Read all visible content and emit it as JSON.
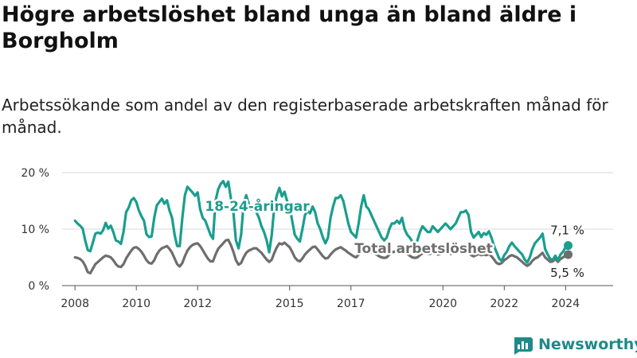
{
  "title": "Högre arbetslöshet bland unga än bland äldre i Borgholm",
  "subtitle": "Arbetssökande som andel av den registerbaserade arbetskraften månad för månad.",
  "brand": {
    "name": "Newsworthy"
  },
  "chart_data": {
    "type": "line",
    "x_range": [
      "2008-01",
      "2024-12"
    ],
    "ylim": [
      0,
      20
    ],
    "y_ticks": [
      0,
      10,
      20
    ],
    "y_tick_labels": [
      "0 %",
      "10 %",
      "20 %"
    ],
    "x_tick_labels": [
      "2008",
      "2010",
      "2012",
      "2015",
      "2017",
      "2020",
      "2022",
      "2024"
    ],
    "grid": true,
    "series": [
      {
        "name": "18-24-åringar",
        "color": "#1a9e8e",
        "end_label": "7,1 %",
        "values": [
          11.5,
          11.0,
          10.6,
          10.1,
          8.0,
          6.3,
          6.1,
          7.6,
          9.2,
          9.4,
          9.2,
          9.8,
          11.1,
          10.1,
          10.6,
          9.5,
          8.0,
          7.8,
          7.4,
          9.5,
          13.0,
          13.8,
          15.1,
          15.5,
          14.8,
          13.3,
          12.3,
          11.5,
          9.1,
          8.6,
          8.7,
          12.0,
          14.2,
          14.8,
          15.4,
          14.5,
          15.1,
          13.3,
          12.0,
          9.0,
          7.0,
          7.0,
          12.0,
          16.0,
          17.5,
          17.0,
          16.5,
          15.9,
          16.5,
          13.5,
          12.0,
          11.5,
          10.3,
          9.0,
          8.3,
          15.0,
          17.0,
          18.0,
          18.5,
          17.5,
          18.4,
          15.5,
          13.0,
          8.0,
          6.6,
          9.0,
          14.5,
          16.0,
          14.5,
          13.5,
          14.0,
          13.0,
          12.0,
          10.5,
          9.5,
          8.0,
          5.9,
          9.0,
          14.0,
          16.0,
          17.3,
          15.8,
          16.6,
          15.0,
          14.0,
          11.5,
          9.0,
          8.3,
          7.8,
          10.0,
          12.5,
          13.2,
          12.8,
          14.0,
          13.0,
          11.0,
          10.0,
          8.5,
          7.5,
          8.5,
          12.0,
          14.0,
          15.5,
          15.5,
          16.0,
          15.0,
          13.0,
          11.0,
          9.5,
          9.0,
          8.5,
          11.0,
          14.0,
          16.0,
          14.0,
          13.5,
          12.5,
          11.5,
          10.5,
          9.5,
          8.5,
          8.0,
          8.5,
          10.0,
          11.0,
          11.0,
          11.5,
          11.0,
          12.0,
          10.0,
          9.0,
          8.5,
          7.8,
          7.5,
          8.0,
          9.5,
          10.5,
          10.0,
          9.5,
          9.5,
          10.5,
          10.0,
          9.5,
          10.0,
          10.5,
          11.0,
          10.5,
          10.0,
          10.5,
          11.0,
          12.0,
          13.0,
          13.0,
          13.3,
          12.5,
          9.5,
          8.5,
          9.0,
          9.5,
          8.6,
          9.3,
          9.0,
          9.6,
          8.5,
          7.0,
          5.9,
          4.8,
          4.4,
          5.4,
          6.0,
          7.0,
          7.6,
          7.0,
          6.5,
          6.0,
          5.5,
          4.6,
          4.1,
          5.0,
          6.5,
          7.5,
          8.0,
          8.5,
          9.2,
          6.5,
          5.5,
          4.7,
          4.6,
          5.3,
          4.5,
          5.5,
          6.0,
          6.8,
          7.1
        ]
      },
      {
        "name": "Total arbetslöshet",
        "color": "#6e6e6e",
        "end_label": "5,5 %",
        "values": [
          5.0,
          4.9,
          4.7,
          4.3,
          3.5,
          2.4,
          2.2,
          3.0,
          3.8,
          4.2,
          4.6,
          5.0,
          5.3,
          5.2,
          5.0,
          4.5,
          3.8,
          3.4,
          3.3,
          3.8,
          4.8,
          5.5,
          6.2,
          6.7,
          6.8,
          6.5,
          6.0,
          5.3,
          4.5,
          4.0,
          3.9,
          4.5,
          5.5,
          6.2,
          6.6,
          6.8,
          7.0,
          6.5,
          5.8,
          4.8,
          3.8,
          3.4,
          4.0,
          5.2,
          6.2,
          6.8,
          7.2,
          7.4,
          7.5,
          7.0,
          6.3,
          5.5,
          4.8,
          4.3,
          4.3,
          5.5,
          6.5,
          7.0,
          7.5,
          8.0,
          8.1,
          7.2,
          6.0,
          4.5,
          3.7,
          4.0,
          5.0,
          5.8,
          6.2,
          6.4,
          6.6,
          6.6,
          6.2,
          5.8,
          5.2,
          4.6,
          4.2,
          4.6,
          5.8,
          6.8,
          7.5,
          7.3,
          7.6,
          7.2,
          6.8,
          6.0,
          5.0,
          4.5,
          4.3,
          4.8,
          5.5,
          6.0,
          6.4,
          6.8,
          6.9,
          6.4,
          5.8,
          5.2,
          4.8,
          4.9,
          5.5,
          6.0,
          6.4,
          6.6,
          6.8,
          6.5,
          6.2,
          5.8,
          5.5,
          5.2,
          5.0,
          5.5,
          6.0,
          6.4,
          6.2,
          6.0,
          5.9,
          5.7,
          5.5,
          5.2,
          5.0,
          4.9,
          5.0,
          5.5,
          5.9,
          6.0,
          6.2,
          6.1,
          6.2,
          5.9,
          5.6,
          5.3,
          5.0,
          4.9,
          5.0,
          5.4,
          5.7,
          5.8,
          5.6,
          5.6,
          5.9,
          5.7,
          5.5,
          5.6,
          5.8,
          5.9,
          5.8,
          5.6,
          5.8,
          6.0,
          6.2,
          6.4,
          6.3,
          6.3,
          6.0,
          5.4,
          5.2,
          5.4,
          5.6,
          5.4,
          5.5,
          5.4,
          5.6,
          5.2,
          4.6,
          4.0,
          3.8,
          4.0,
          4.5,
          4.8,
          5.2,
          5.4,
          5.2,
          5.0,
          4.6,
          4.2,
          3.8,
          3.5,
          3.8,
          4.4,
          4.8,
          5.0,
          5.4,
          5.8,
          5.0,
          4.6,
          4.2,
          4.3,
          4.7,
          4.2,
          4.7,
          5.0,
          5.3,
          5.5
        ]
      }
    ]
  }
}
